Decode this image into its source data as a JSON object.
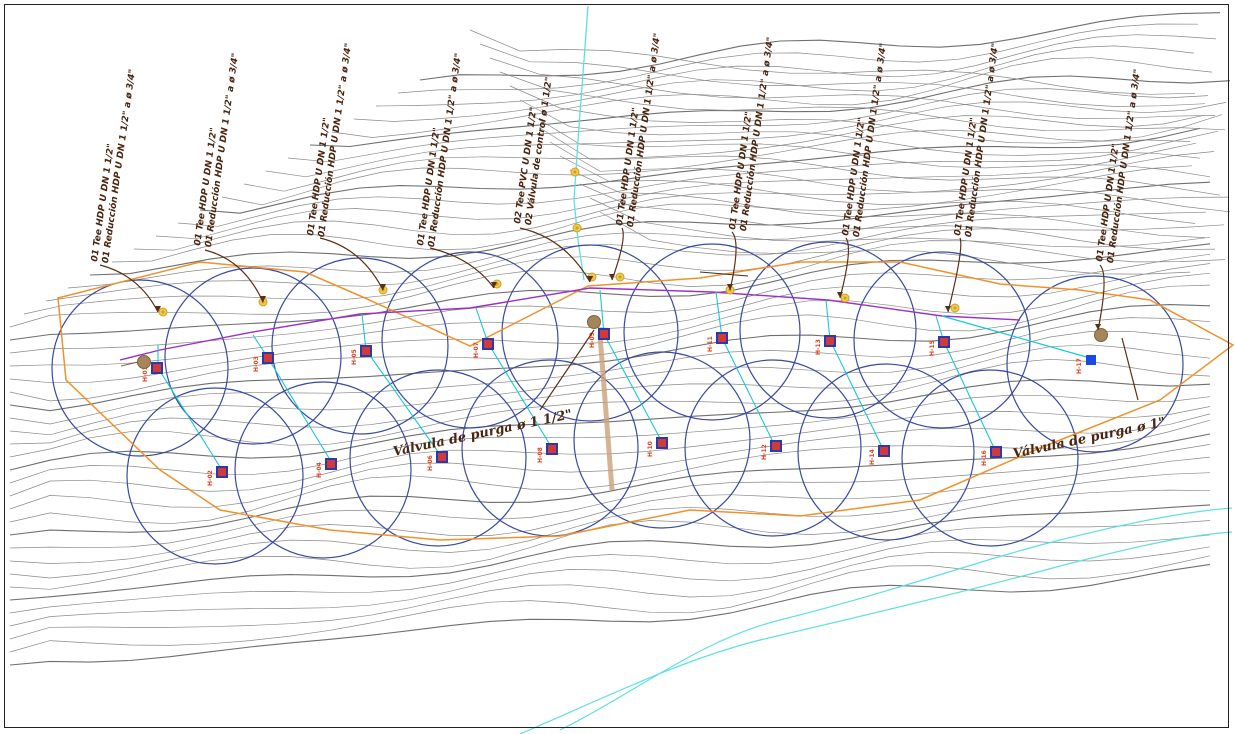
{
  "annotations": [
    {
      "line1": "01 Tee HDP U DN 1 1/2\"",
      "line2": "01 Reducción HDP U DN 1 1/2\" a ø 3/4\""
    },
    {
      "line1": "01 Tee HDP U DN 1 1/2\"",
      "line2": "01 Reducción HDP U DN 1 1/2\" a ø 3/4\""
    },
    {
      "line1": "01 Tee HDP U DN 1 1/2\"",
      "line2": "01 Reducción HDP U DN 1 1/2\" a ø 3/4\""
    },
    {
      "line1": "01 Tee HDP U DN 1 1/2\"",
      "line2": "01 Reducción HDP U DN 1 1/2\" a ø 3/4\""
    },
    {
      "line1": "02 Tee PVC U DN 1 1/2\"",
      "line2": "02 Válvula de control ø 1 1/2\""
    },
    {
      "line1": "01 Tee HDP U DN 1 1/2\"",
      "line2": "01 Reducción HDP U DN 1 1/2\" a ø 3/4\""
    },
    {
      "line1": "01 Tee HDP U DN 1 1/2\"",
      "line2": "01 Reducción HDP U DN 1 1/2\" a ø 3/4\""
    },
    {
      "line1": "01 Tee HDP U DN 1 1/2\"",
      "line2": "01 Reducción HDP U DN 1 1/2\" a ø 3/4\""
    },
    {
      "line1": "01 Tee HDP U DN 1 1/2\"",
      "line2": "01 Reducción HDP U DN 1 1/2\" a ø 3/4\""
    },
    {
      "line1": "01 Tee HDP U DN 1 1/2\"",
      "line2": "01 Reducción HDP U DN 1 1/2\" a ø 3/4\""
    },
    {
      "line1": "01 Tee HDP U DN 1 1/2\"",
      "line2": "01 Reducción HDP U DN 1 1/2\" a ø 3/4\""
    }
  ],
  "valves": {
    "left": "Válvula de purga ø 1 1/2\"",
    "right": "Válvula de purga ø 1\""
  },
  "hydrants": [
    "H-01",
    "H-02",
    "H-03",
    "H-04",
    "H-05",
    "H-06",
    "H-07",
    "H-08",
    "H-09",
    "H-10",
    "H-11",
    "H-12",
    "H-13",
    "H-14",
    "H-15",
    "H-16",
    "H-17"
  ],
  "colors": {
    "contour": "#8a8a8a",
    "boundary": "#f0922a",
    "main_pipe": "#9b30c8",
    "lateral_pipe": "#18c8d8",
    "sprinkler_circle": "#3a4aa0",
    "callout": "#5a2e14",
    "hydrant_fill": "#d03a3a",
    "hydrant_border": "#2a3aa8",
    "fitting": "#f2c94c",
    "valve_node": "#a5865a",
    "river": "#5ee0e0"
  }
}
